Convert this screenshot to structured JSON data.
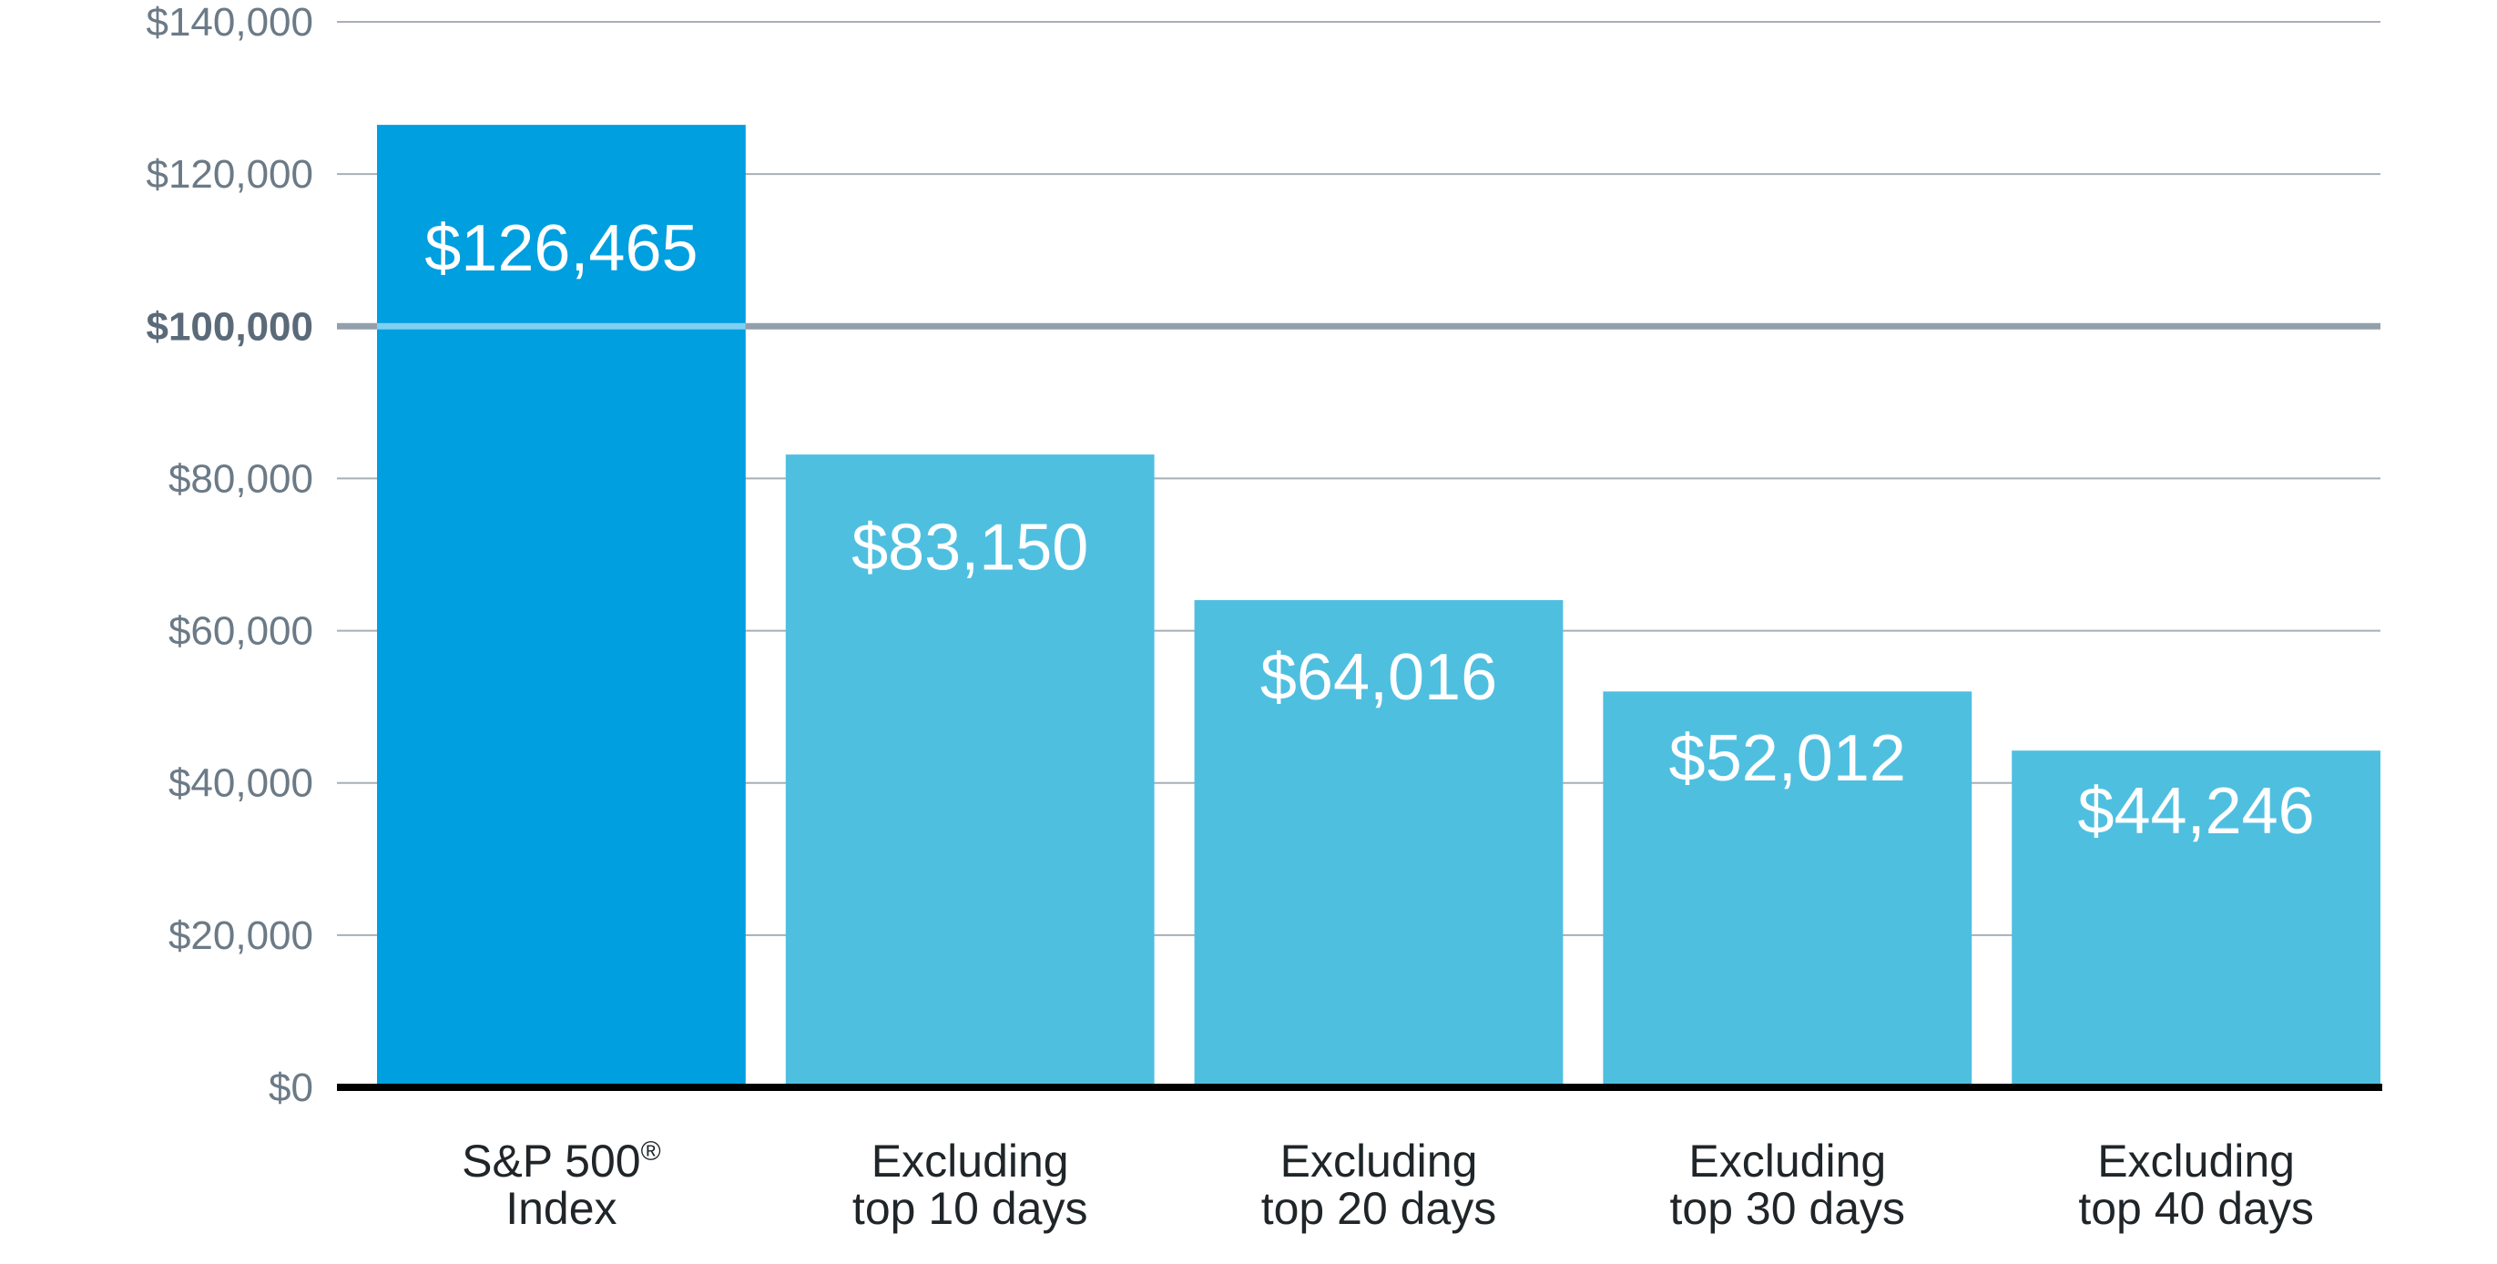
{
  "chart_data": {
    "type": "bar",
    "title": "",
    "xlabel": "",
    "ylabel": "",
    "ylim": [
      0,
      140000
    ],
    "grid": true,
    "emphasized_gridline": 100000,
    "y_ticks": [
      {
        "value": 0,
        "label": "$0"
      },
      {
        "value": 20000,
        "label": "$20,000"
      },
      {
        "value": 40000,
        "label": "$40,000"
      },
      {
        "value": 60000,
        "label": "$60,000"
      },
      {
        "value": 80000,
        "label": "$80,000"
      },
      {
        "value": 100000,
        "label": "$100,000"
      },
      {
        "value": 120000,
        "label": "$120,000"
      },
      {
        "value": 140000,
        "label": "$140,000"
      }
    ],
    "categories": [
      {
        "line1": "S&P 500",
        "sup": "®",
        "line2": "Index"
      },
      {
        "line1": "Excluding",
        "sup": "",
        "line2": "top 10 days"
      },
      {
        "line1": "Excluding",
        "sup": "",
        "line2": "top 20 days"
      },
      {
        "line1": "Excluding",
        "sup": "",
        "line2": "top 30 days"
      },
      {
        "line1": "Excluding",
        "sup": "",
        "line2": "top 40 days"
      }
    ],
    "values": [
      126465,
      83150,
      64016,
      52012,
      44246
    ],
    "value_labels": [
      "$126,465",
      "$83,150",
      "$64,016",
      "$52,012",
      "$44,246"
    ],
    "colors": [
      "#009fdf",
      "#4fbfe0",
      "#4fbfe0",
      "#4fbfe0",
      "#4fbfe0"
    ],
    "emphasis_line_over_bar_color": "#7fd0f2"
  }
}
